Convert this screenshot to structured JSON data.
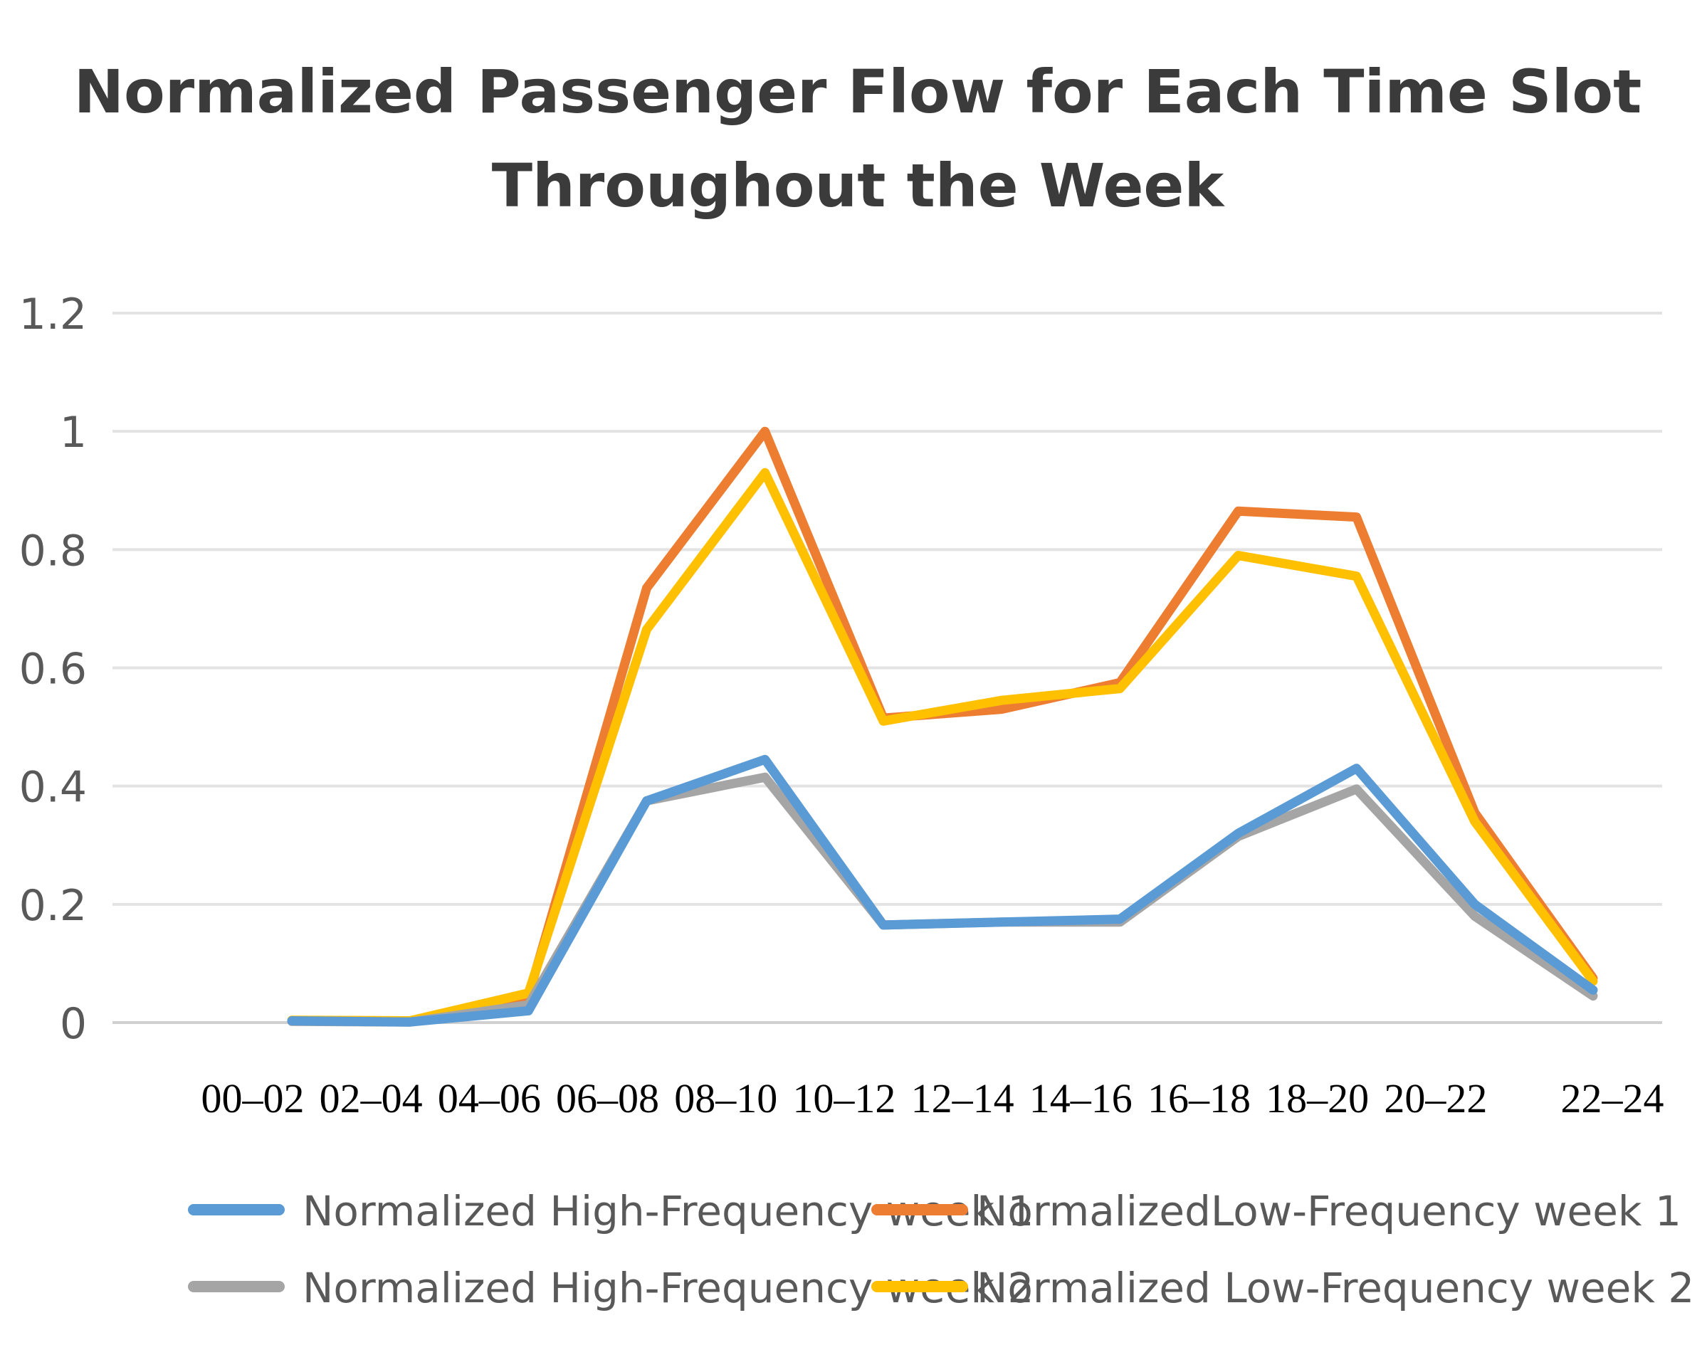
{
  "chart_data": {
    "type": "line",
    "title_lines": [
      "Normalized Passenger Flow for Each Time Slot",
      "Throughout the Week"
    ],
    "xlabel": "",
    "ylabel": "",
    "categories": [
      "00–02",
      "02–04",
      "04–06",
      "06–08",
      "08–10",
      "10–12",
      "12–14",
      "14–16",
      "16–18",
      "18–20",
      "20–22",
      "22–24"
    ],
    "ylim": [
      0,
      1.2
    ],
    "yticks": [
      0,
      0.2,
      0.4,
      0.6,
      0.8,
      1,
      1.2
    ],
    "ytick_labels": [
      "0",
      "0.2",
      "0.4",
      "0.6",
      "0.8",
      "1",
      "1.2"
    ],
    "grid": true,
    "legend_position": "bottom",
    "series": [
      {
        "name": "Normalized High-Frequency week 1",
        "color": "#5b9bd5",
        "values": [
          0.003,
          0.001,
          0.02,
          0.375,
          0.445,
          0.165,
          0.17,
          0.175,
          0.32,
          0.43,
          0.2,
          0.055
        ]
      },
      {
        "name": "NormalizedLow-Frequency  week 1",
        "color": "#ed7d31",
        "values": [
          0.003,
          0.002,
          0.045,
          0.735,
          1.0,
          0.515,
          0.53,
          0.575,
          0.865,
          0.855,
          0.355,
          0.075
        ]
      },
      {
        "name": "Normalized High-Frequency week 2",
        "color": "#a5a5a5",
        "values": [
          0.002,
          0.001,
          0.03,
          0.375,
          0.415,
          0.165,
          0.17,
          0.17,
          0.315,
          0.395,
          0.18,
          0.045
        ]
      },
      {
        "name": "Normalized Low-Frequency week 2",
        "color": "#ffc000",
        "values": [
          0.004,
          0.003,
          0.05,
          0.665,
          0.93,
          0.51,
          0.545,
          0.565,
          0.79,
          0.755,
          0.34,
          0.07
        ]
      }
    ]
  }
}
